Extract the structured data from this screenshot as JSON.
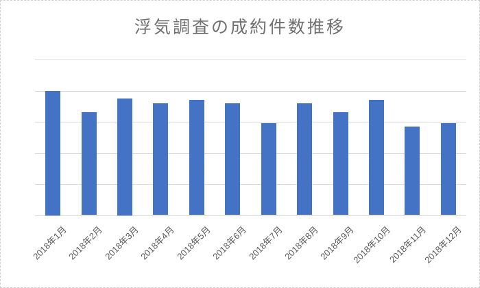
{
  "chart_data": {
    "type": "bar",
    "title": "浮気調査の成約件数推移",
    "categories": [
      "2018年1月",
      "2018年2月",
      "2018年3月",
      "2018年4月",
      "2018年5月",
      "2018年6月",
      "2018年7月",
      "2018年8月",
      "2018年9月",
      "2018年10月",
      "2018年11月",
      "2018年12月"
    ],
    "values": [
      40,
      33,
      37.5,
      36,
      37,
      36,
      29.5,
      36,
      33,
      37,
      28.5,
      29.5
    ],
    "xlabel": "",
    "ylabel": "",
    "ylim": [
      0,
      50
    ],
    "gridline_step": 10,
    "grid": true,
    "legend_position": "none",
    "y_axis_labels_visible": false,
    "x_label_rotation_deg": -45,
    "bar_color": "#4472C4",
    "gridline_color": "#D9D9D9",
    "axis_line_color": "#D0D0D0",
    "title_color": "#707070",
    "label_color": "#595959",
    "border_color": "#CFCFCF",
    "background_color": "#FFFFFF"
  }
}
